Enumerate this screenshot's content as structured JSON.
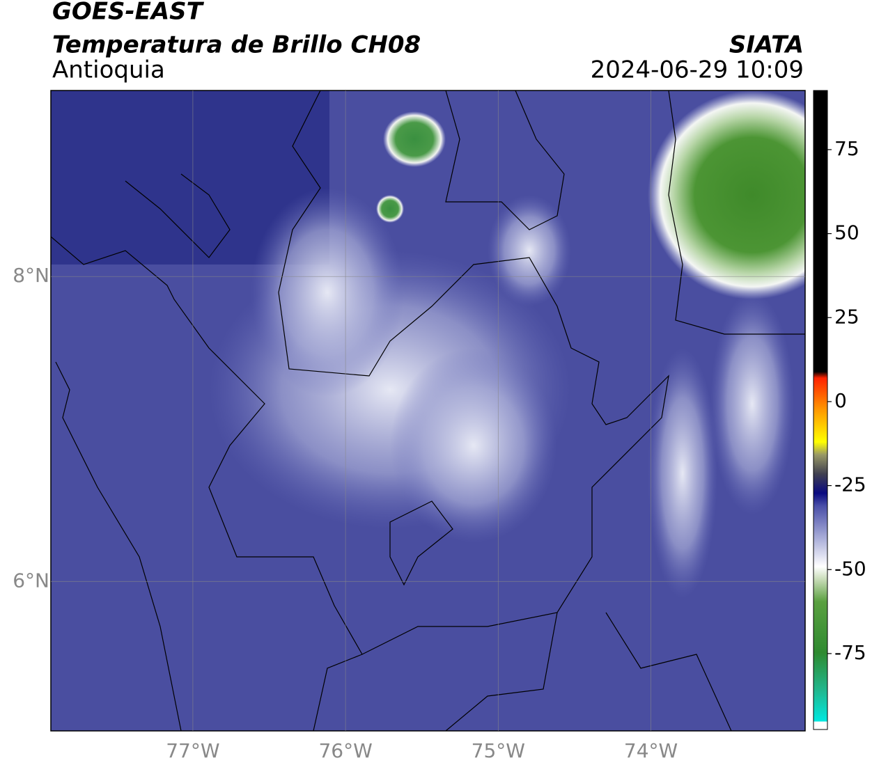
{
  "header": {
    "title": "GOES-EAST",
    "subtitle": "Temperatura de Brillo CH08",
    "region": "Antioquia",
    "source": "SIATA",
    "datetime": "2024-06-29 10:09"
  },
  "map": {
    "xlim": [
      -77.93,
      -72.99
    ],
    "ylim": [
      5.02,
      9.22
    ],
    "xticks": [
      {
        "value": -77,
        "label": "77°W"
      },
      {
        "value": -76,
        "label": "76°W"
      },
      {
        "value": -75,
        "label": "75°W"
      },
      {
        "value": -74,
        "label": "74°W"
      }
    ],
    "yticks": [
      {
        "value": 6,
        "label": "6°N"
      },
      {
        "value": 8,
        "label": "8°N"
      }
    ],
    "grid": true
  },
  "colorbar": {
    "lim": [
      -97.6,
      92.6
    ],
    "ticks": [
      75,
      50,
      25,
      0,
      -25,
      -50,
      -75
    ]
  }
}
